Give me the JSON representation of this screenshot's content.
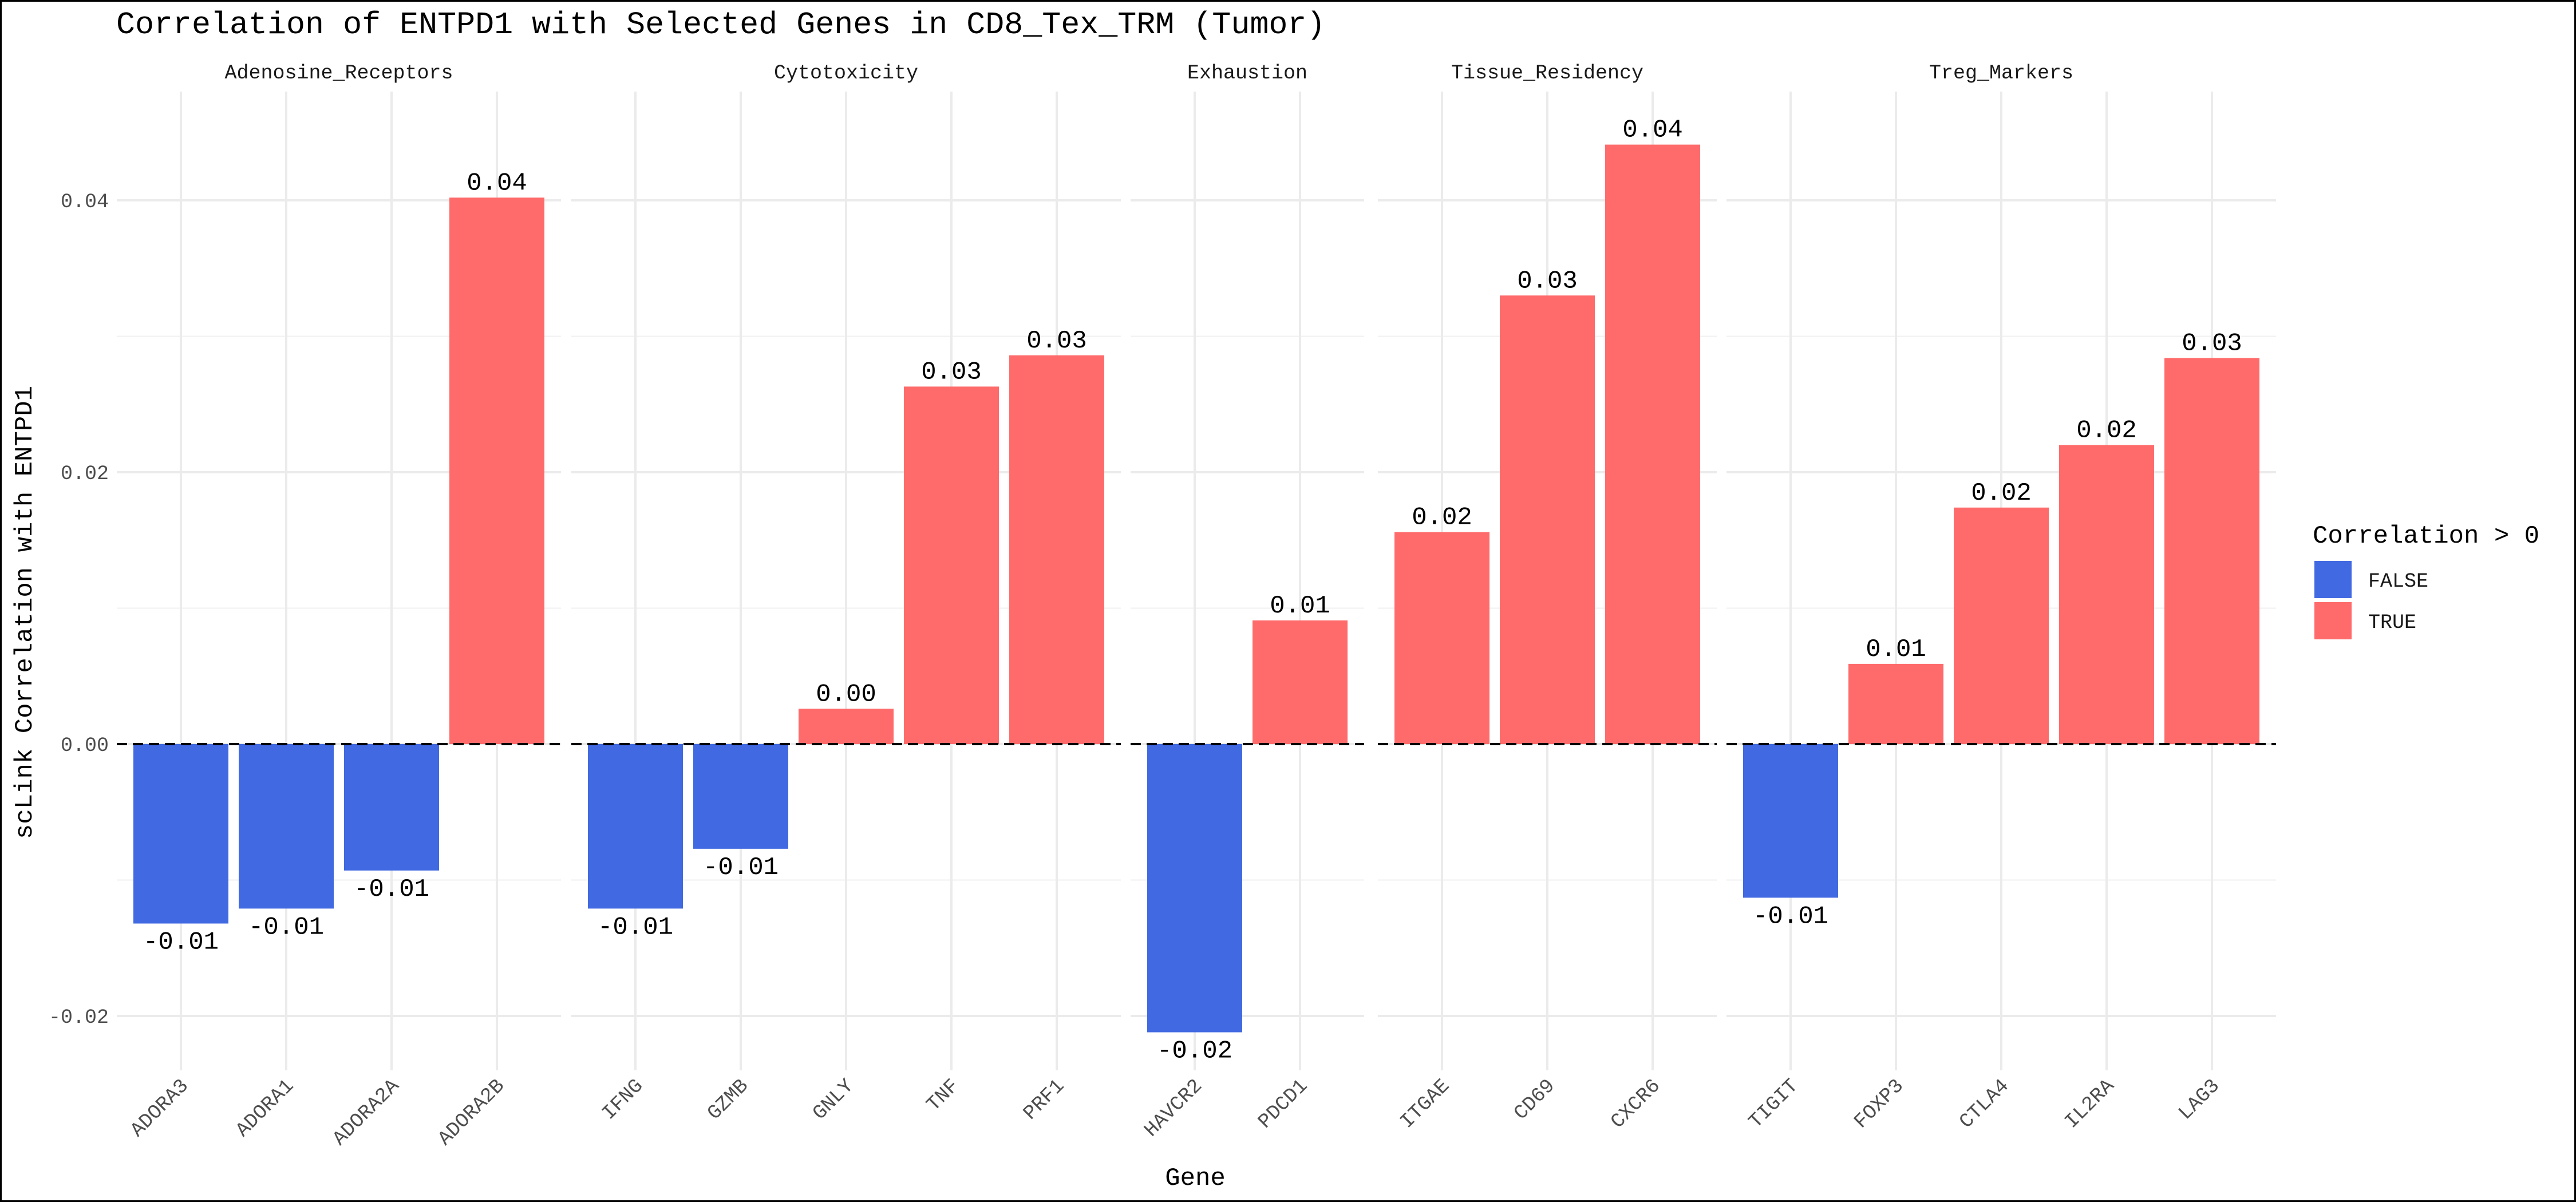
{
  "chart_data": {
    "type": "bar",
    "title": "Correlation of ENTPD1 with Selected Genes in CD8_Tex_TRM (Tumor)",
    "xlabel": "Gene",
    "ylabel": "scLink Correlation with ENTPD1",
    "ylim": [
      -0.024,
      0.048
    ],
    "yticks": [
      -0.02,
      0.0,
      0.02,
      0.04
    ],
    "ytick_labels": [
      "-0.02",
      "0.00",
      "0.02",
      "0.04"
    ],
    "grid": true,
    "reference_line": 0,
    "legend": {
      "title": "Correlation > 0",
      "position": "right",
      "entries": [
        {
          "label": "FALSE",
          "color": "#4169E1"
        },
        {
          "label": "TRUE",
          "color": "#FF6B6B"
        }
      ]
    },
    "facets": [
      {
        "name": "Adenosine_Receptors",
        "categories": [
          "ADORA3",
          "ADORA1",
          "ADORA2A",
          "ADORA2B"
        ],
        "values": [
          -0.0132,
          -0.0121,
          -0.0093,
          0.0402
        ],
        "labels": [
          "-0.01",
          "-0.01",
          "-0.01",
          "0.04"
        ]
      },
      {
        "name": "Cytotoxicity",
        "categories": [
          "IFNG",
          "GZMB",
          "GNLY",
          "TNF",
          "PRF1"
        ],
        "values": [
          -0.0121,
          -0.0077,
          0.0026,
          0.0263,
          0.0286
        ],
        "labels": [
          "-0.01",
          "-0.01",
          "0.00",
          "0.03",
          "0.03"
        ]
      },
      {
        "name": "Exhaustion",
        "categories": [
          "HAVCR2",
          "PDCD1"
        ],
        "values": [
          -0.0212,
          0.0091
        ],
        "labels": [
          "-0.02",
          "0.01"
        ]
      },
      {
        "name": "Tissue_Residency",
        "categories": [
          "ITGAE",
          "CD69",
          "CXCR6"
        ],
        "values": [
          0.0156,
          0.033,
          0.0441
        ],
        "labels": [
          "0.02",
          "0.03",
          "0.04"
        ]
      },
      {
        "name": "Treg_Markers",
        "categories": [
          "TIGIT",
          "FOXP3",
          "CTLA4",
          "IL2RA",
          "LAG3"
        ],
        "values": [
          -0.0113,
          0.0059,
          0.0174,
          0.022,
          0.0284
        ],
        "labels": [
          "-0.01",
          "0.01",
          "0.02",
          "0.02",
          "0.03"
        ]
      }
    ]
  }
}
